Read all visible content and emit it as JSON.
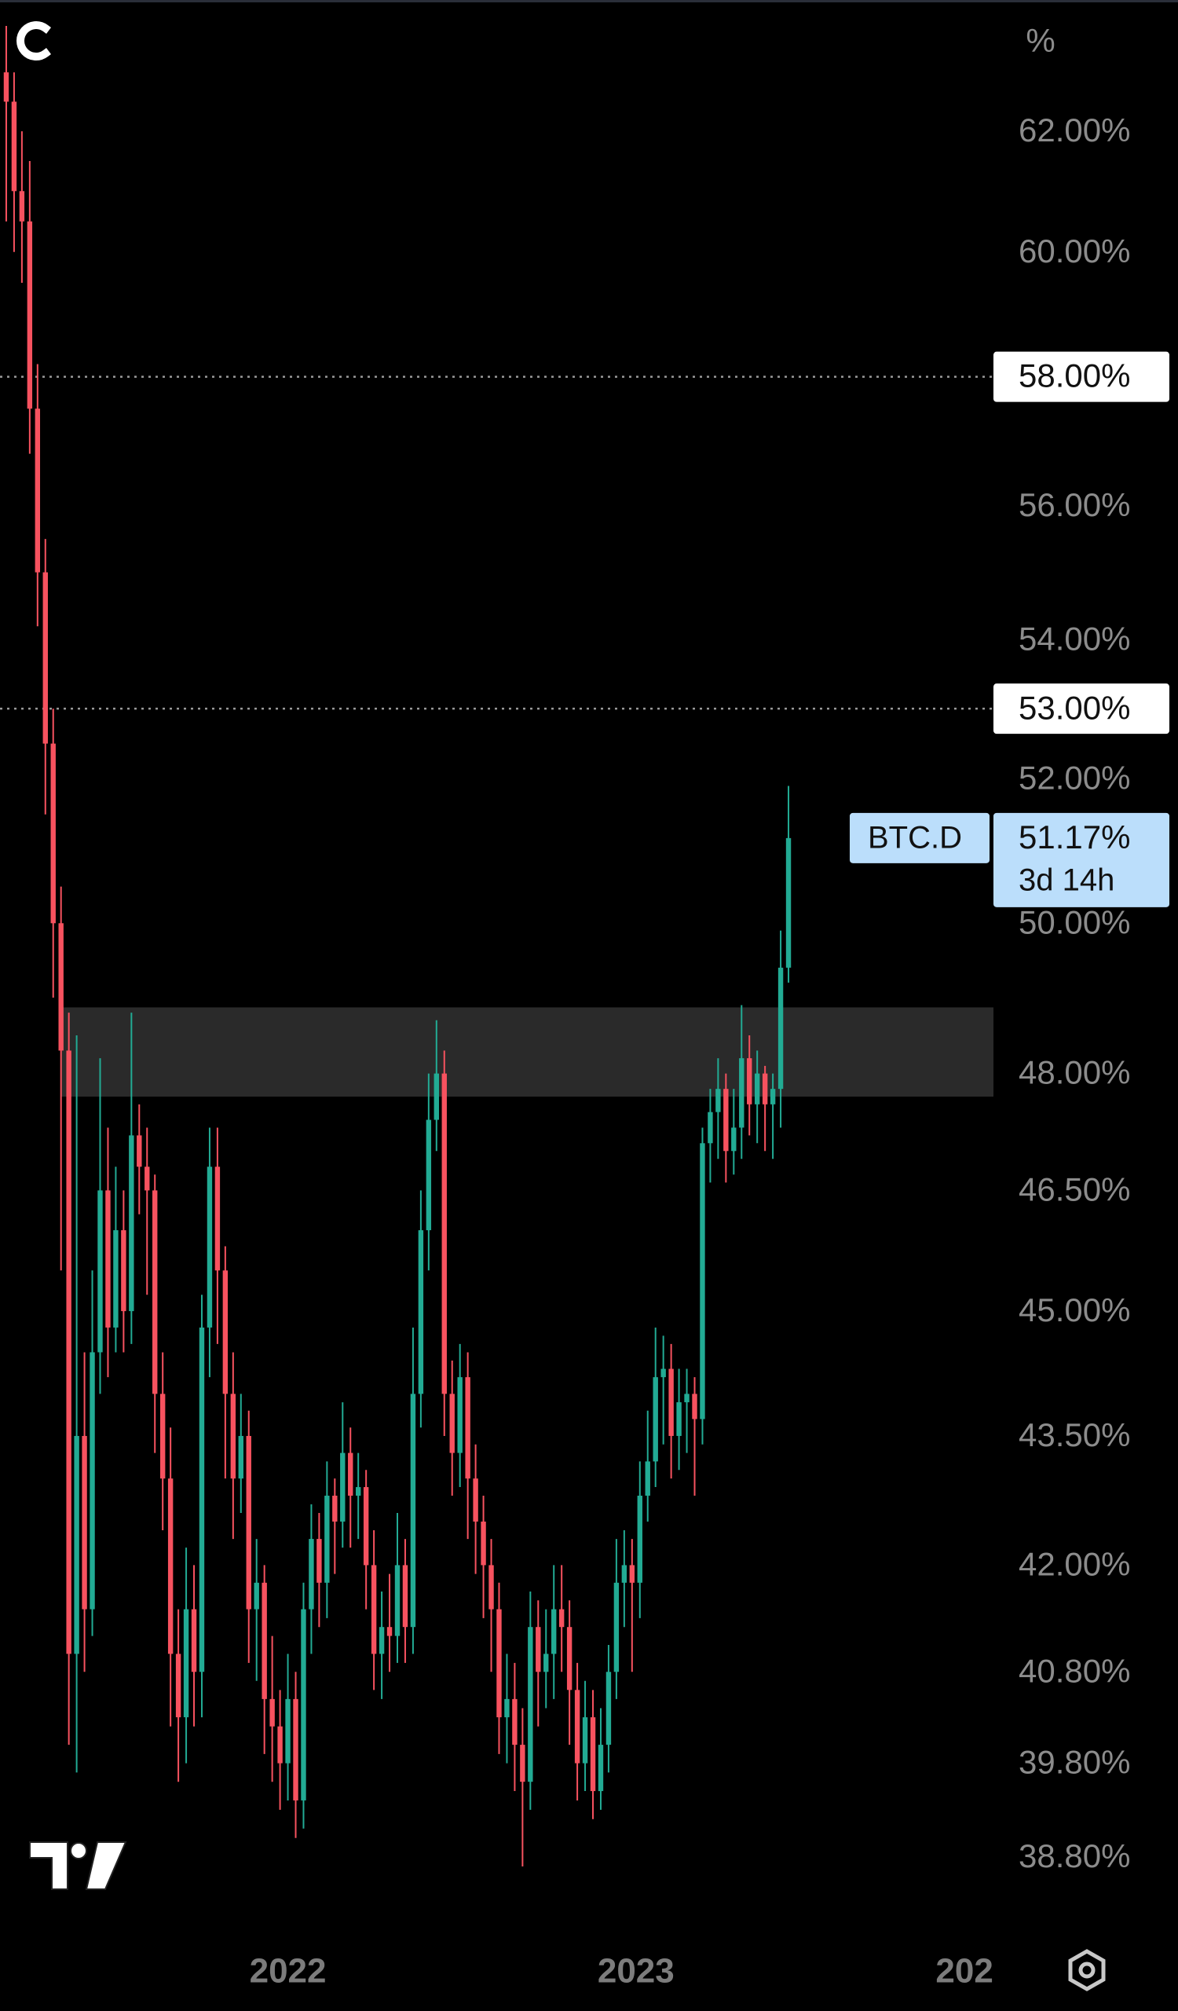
{
  "chart_data": {
    "type": "candlestick",
    "scale": "log",
    "unit": "%",
    "up_color": "#22ab94",
    "down_color": "#f7525f",
    "open": [
      63,
      62.5,
      61,
      60.5,
      57.5,
      55,
      52.5,
      50,
      48.3,
      41.0,
      43.5,
      41.5,
      44.5,
      46.5,
      44.8,
      46,
      45,
      47.2,
      46.8,
      46.5,
      44,
      43,
      41,
      40.3,
      41.5,
      40.8,
      44.8,
      46.8,
      45.5,
      44,
      43,
      43.5,
      41.5,
      41.8,
      40.5,
      40.2,
      39.8,
      40.5,
      39.4,
      41.5,
      42.3,
      41.8,
      42.8,
      42.5,
      43.3,
      42.8,
      42.9,
      42.0,
      41.0,
      41.3,
      41.2,
      42.0,
      41.3,
      44.0,
      46.0,
      47.4,
      48.0,
      44.0,
      43.3,
      44.2,
      43.0,
      42.5,
      42.0,
      41.5,
      40.3,
      40.5,
      40.0,
      39.6,
      41.3,
      40.8,
      41.0,
      41.5,
      41.3,
      40.6,
      39.8,
      40.3,
      39.5,
      40.0,
      40.8,
      41.8,
      42.0,
      41.8,
      42.8,
      43.2,
      44.2,
      44.3,
      43.5,
      43.9,
      44.0,
      43.7,
      47.1,
      47.5,
      47.8,
      47.0,
      47.3,
      48.2,
      47.6,
      48.0,
      47.6,
      47.8,
      49.4
    ],
    "high": [
      63.8,
      63.0,
      62.0,
      61.5,
      58.2,
      55.5,
      53.0,
      50.5,
      48.8,
      48.5,
      44.5,
      45.5,
      48.2,
      47.3,
      46.8,
      46.5,
      48.8,
      47.6,
      47.3,
      46.7,
      44.5,
      43.6,
      41.5,
      42.2,
      42.0,
      45.2,
      47.3,
      47.3,
      45.8,
      44.5,
      44.0,
      43.8,
      42.3,
      42.0,
      41.2,
      40.6,
      41.0,
      40.8,
      41.8,
      42.7,
      42.6,
      43.2,
      43.0,
      43.9,
      43.6,
      43.3,
      43.1,
      42.4,
      41.7,
      41.9,
      42.6,
      42.3,
      44.8,
      46.5,
      48.0,
      48.7,
      48.3,
      44.4,
      44.6,
      44.5,
      43.4,
      42.8,
      42.3,
      41.8,
      41.0,
      40.9,
      40.4,
      41.7,
      41.6,
      41.5,
      42.0,
      42.0,
      41.6,
      40.9,
      40.7,
      40.6,
      40.4,
      41.1,
      42.3,
      42.4,
      42.3,
      43.2,
      43.8,
      44.8,
      44.7,
      44.6,
      44.3,
      44.3,
      44.2,
      47.3,
      47.8,
      48.2,
      48.0,
      47.8,
      48.9,
      48.5,
      48.3,
      48.1,
      48.0,
      49.9,
      51.9
    ],
    "low": [
      60.5,
      60.0,
      59.5,
      56.8,
      54.2,
      51.5,
      49.0,
      45.5,
      40.0,
      39.7,
      40.8,
      41.2,
      44.0,
      44.2,
      44.5,
      44.5,
      44.6,
      46.2,
      45.2,
      43.3,
      42.4,
      40.2,
      39.6,
      39.8,
      40.2,
      40.3,
      44.2,
      44.6,
      43.0,
      42.3,
      42.6,
      40.9,
      40.7,
      39.9,
      39.6,
      39.3,
      39.4,
      39.0,
      39.1,
      41.0,
      41.3,
      41.4,
      41.9,
      42.2,
      42.2,
      42.3,
      41.5,
      40.6,
      40.5,
      40.8,
      40.9,
      40.9,
      41.0,
      43.6,
      45.5,
      47.0,
      43.5,
      42.8,
      42.9,
      42.3,
      41.9,
      41.4,
      40.8,
      39.9,
      39.8,
      39.5,
      38.7,
      39.3,
      40.2,
      40.4,
      40.5,
      40.8,
      40.0,
      39.4,
      39.5,
      39.2,
      39.3,
      39.7,
      40.5,
      41.3,
      40.8,
      41.4,
      42.5,
      42.9,
      43.4,
      43.0,
      43.1,
      43.3,
      42.8,
      43.4,
      46.6,
      46.9,
      46.6,
      46.7,
      46.9,
      47.2,
      47.1,
      47.0,
      46.9,
      47.3,
      49.2
    ],
    "close": [
      62.5,
      61,
      60.5,
      57.5,
      55,
      52.5,
      50,
      48.3,
      41.0,
      43.5,
      41.5,
      44.5,
      46.5,
      44.8,
      46,
      45,
      47.2,
      46.8,
      46.5,
      44,
      43,
      41,
      40.3,
      41.5,
      40.8,
      44.8,
      46.8,
      45.5,
      44,
      43,
      43.5,
      41.5,
      41.8,
      40.5,
      40.2,
      39.8,
      40.5,
      39.4,
      41.5,
      42.3,
      41.8,
      42.8,
      42.5,
      43.3,
      42.8,
      42.9,
      42.0,
      41.0,
      41.3,
      41.2,
      42.0,
      41.3,
      44.0,
      46.0,
      47.4,
      48.0,
      44.0,
      43.3,
      44.2,
      43.0,
      42.5,
      42.0,
      41.5,
      40.3,
      40.5,
      40.0,
      39.6,
      41.3,
      40.8,
      41.0,
      41.5,
      41.3,
      40.6,
      39.8,
      40.3,
      39.5,
      40.0,
      40.8,
      41.8,
      42.0,
      41.8,
      42.8,
      43.2,
      44.2,
      44.3,
      43.5,
      43.9,
      44.0,
      43.7,
      47.1,
      47.5,
      47.8,
      47.0,
      47.3,
      48.2,
      47.6,
      48.0,
      47.6,
      47.8,
      49.4,
      51.17
    ],
    "xlim": [
      -0.8,
      126.2
    ],
    "xticks": [
      {
        "value": 36,
        "label": "2022"
      },
      {
        "value": 80.5,
        "label": "2023"
      },
      {
        "value": 122.5,
        "label": "202"
      }
    ],
    "ylim": [
      38.24,
      64.25
    ],
    "yticks": [
      {
        "value": 62,
        "label": "62.00%"
      },
      {
        "value": 60,
        "label": "60.00%"
      },
      {
        "value": 56,
        "label": "56.00%"
      },
      {
        "value": 54,
        "label": "54.00%"
      },
      {
        "value": 52,
        "label": "52.00%"
      },
      {
        "value": 50,
        "label": "50.00%"
      },
      {
        "value": 48,
        "label": "48.00%"
      },
      {
        "value": 46.5,
        "label": "46.50%"
      },
      {
        "value": 45,
        "label": "45.00%"
      },
      {
        "value": 43.5,
        "label": "43.50%"
      },
      {
        "value": 42,
        "label": "42.00%"
      },
      {
        "value": 40.8,
        "label": "40.80%"
      },
      {
        "value": 39.8,
        "label": "39.80%"
      },
      {
        "value": 38.8,
        "label": "38.80%"
      }
    ],
    "hlines": [
      {
        "value": 58,
        "label": "58.00%"
      },
      {
        "value": 53,
        "label": "53.00%"
      }
    ],
    "zone": {
      "low": 47.7,
      "high": 48.87,
      "from": 7
    },
    "last": {
      "name": "BTC.D",
      "value": 51.17,
      "label": "51.17%",
      "countdown": "3d 14h"
    }
  }
}
